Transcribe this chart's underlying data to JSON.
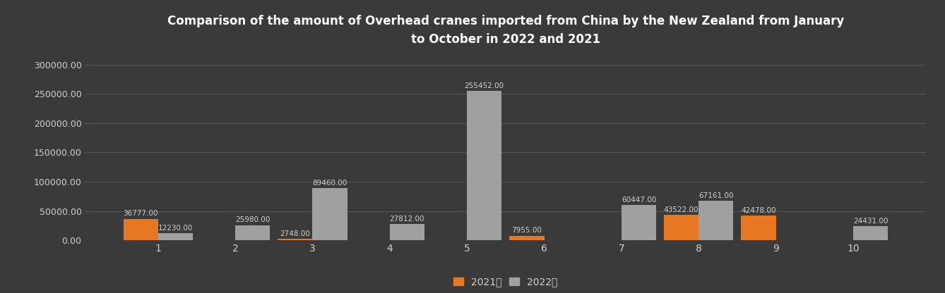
{
  "title": "Comparison of the amount of Overhead cranes imported from China by the New Zealand from January\nto October in 2022 and 2021",
  "months": [
    1,
    2,
    3,
    4,
    5,
    6,
    7,
    8,
    9,
    10
  ],
  "values_2021": [
    36777,
    0,
    2748,
    0,
    0,
    7955,
    0,
    43522,
    42478,
    0
  ],
  "values_2022": [
    12230,
    25980,
    89460,
    27812,
    255452,
    0,
    60447,
    67161,
    0,
    24431
  ],
  "labels_2021": [
    "36777.00",
    "",
    "2748.00",
    "",
    "",
    "7955.00",
    "",
    "43522.00",
    "42478.00",
    ""
  ],
  "labels_2022": [
    "12230.00",
    "25980.00",
    "89460.00",
    "27812.00",
    "255452.00",
    "",
    "60447.00",
    "67161.00",
    "",
    "24431.00"
  ],
  "color_2021": "#E87722",
  "color_2022": "#A0A0A0",
  "background_color": "#3a3a3a",
  "axes_color": "#2e2e2e",
  "text_color": "#d0d0d0",
  "legend_2021": "2021年",
  "legend_2022": "2022年",
  "bar_width": 0.45,
  "ylim": [
    0,
    320000
  ],
  "yticks": [
    0,
    50000,
    100000,
    150000,
    200000,
    250000,
    300000
  ]
}
